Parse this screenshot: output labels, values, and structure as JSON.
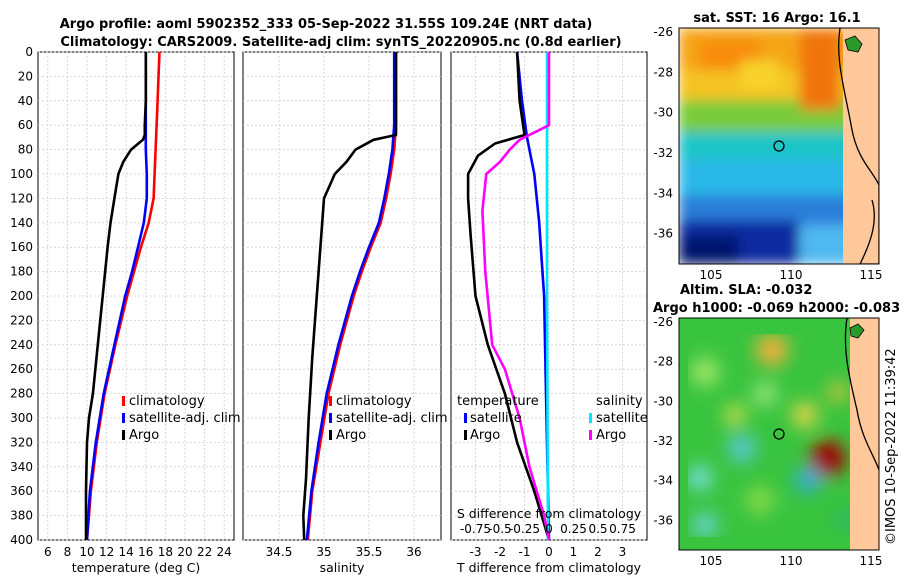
{
  "header": {
    "title_line1": "Argo profile: aoml 5902352_333 05-Sep-2022 31.55S 109.24E (NRT data)",
    "title_line2": "Climatology: CARS2009. Satellite-adj clim: synTS_20220905.nc (0.8d earlier)",
    "sst_title": "sat. SST: 16 Argo: 16.1",
    "sla_title": "Altim. SLA: -0.032",
    "sla_subtitle": "Argo h1000: -0.069 h2000: -0.083",
    "credit": "©IMOS 10-Sep-2022 11:39:42"
  },
  "colors": {
    "climatology": "#ff0000",
    "satellite": "#0000ff",
    "argo": "#000000",
    "sal_satellite": "#00e5ff",
    "sal_argo": "#ff00ff"
  },
  "chart_data": [
    {
      "type": "line",
      "id": "temperature",
      "xlabel": "temperature (deg C)",
      "ylabel": "",
      "xlim": [
        5,
        25
      ],
      "ylim": [
        400,
        0
      ],
      "xticks": [
        "6",
        "8",
        "10",
        "12",
        "14",
        "16",
        "18",
        "20",
        "22",
        "24"
      ],
      "yticks": [
        "0",
        "20",
        "40",
        "60",
        "80",
        "100",
        "120",
        "140",
        "160",
        "180",
        "200",
        "220",
        "240",
        "260",
        "280",
        "300",
        "320",
        "340",
        "360",
        "380",
        "400"
      ],
      "legend": [
        "climatology",
        "satellite-adj. clim",
        "Argo"
      ],
      "series": [
        {
          "name": "climatology",
          "depth": [
            0,
            20,
            40,
            60,
            80,
            100,
            120,
            140,
            160,
            180,
            200,
            240,
            280,
            320,
            360,
            400
          ],
          "values": [
            17.4,
            17.3,
            17.2,
            17.1,
            17.0,
            16.9,
            16.8,
            16.3,
            15.5,
            14.8,
            14.1,
            12.9,
            11.8,
            11.0,
            10.4,
            10.0
          ]
        },
        {
          "name": "satellite-adj. clim",
          "depth": [
            0,
            20,
            40,
            60,
            80,
            100,
            120,
            140,
            160,
            180,
            200,
            240,
            280,
            320,
            360,
            400
          ],
          "values": [
            16.0,
            16.0,
            16.0,
            16.0,
            16.0,
            16.1,
            16.1,
            15.8,
            15.2,
            14.6,
            13.9,
            12.8,
            11.7,
            10.9,
            10.3,
            10.0
          ]
        },
        {
          "name": "Argo",
          "depth": [
            0,
            20,
            40,
            60,
            68,
            72,
            80,
            90,
            100,
            110,
            120,
            140,
            160,
            200,
            240,
            280,
            300,
            320,
            360,
            400
          ],
          "values": [
            16.0,
            16.0,
            16.0,
            15.9,
            15.9,
            15.7,
            14.5,
            13.7,
            13.2,
            13.0,
            12.8,
            12.4,
            12.1,
            11.6,
            11.1,
            10.6,
            10.2,
            10.0,
            9.9,
            9.9
          ]
        }
      ]
    },
    {
      "type": "line",
      "id": "salinity",
      "xlabel": "salinity",
      "ylabel": "",
      "xlim": [
        34.1,
        36.3
      ],
      "ylim": [
        400,
        0
      ],
      "xticks": [
        "34.5",
        "35",
        "35.5",
        "36"
      ],
      "legend": [
        "climatology",
        "satellite-adj. clim",
        "Argo"
      ],
      "series": [
        {
          "name": "climatology",
          "depth": [
            0,
            40,
            60,
            80,
            100,
            120,
            140,
            160,
            180,
            200,
            240,
            280,
            320,
            360,
            400
          ],
          "values": [
            35.8,
            35.8,
            35.8,
            35.78,
            35.74,
            35.69,
            35.63,
            35.52,
            35.42,
            35.33,
            35.18,
            35.05,
            34.96,
            34.87,
            34.82
          ]
        },
        {
          "name": "satellite-adj. clim",
          "depth": [
            0,
            40,
            60,
            80,
            100,
            120,
            140,
            160,
            180,
            200,
            240,
            280,
            320,
            360,
            400
          ],
          "values": [
            35.78,
            35.78,
            35.78,
            35.76,
            35.72,
            35.67,
            35.61,
            35.5,
            35.4,
            35.31,
            35.16,
            35.03,
            34.94,
            34.86,
            34.81
          ]
        },
        {
          "name": "Argo",
          "depth": [
            0,
            50,
            68,
            72,
            80,
            90,
            100,
            120,
            150,
            200,
            250,
            300,
            350,
            380,
            400
          ],
          "values": [
            35.8,
            35.8,
            35.8,
            35.55,
            35.35,
            35.25,
            35.12,
            35.0,
            34.97,
            34.92,
            34.87,
            34.83,
            34.8,
            34.77,
            34.78
          ]
        }
      ]
    },
    {
      "type": "line",
      "id": "differences",
      "xlabel": "T difference from climatology",
      "x2label": "S difference from climatology",
      "xlim": [
        -4,
        4
      ],
      "ylim": [
        400,
        0
      ],
      "xticks": [
        "-3",
        "-2",
        "-1",
        "0",
        "1",
        "2",
        "3"
      ],
      "x2ticks": [
        "-0.75",
        "-0.5",
        "-0.25",
        "0",
        "0.25",
        "0.5",
        "0.75"
      ],
      "legend_temp_title": "temperature",
      "legend_sal_title": "salinity",
      "legend_temp": [
        "satellite",
        "Argo"
      ],
      "legend_sal": [
        "satellite",
        "Argo"
      ],
      "series": [
        {
          "name": "T satellite",
          "depth": [
            0,
            40,
            70,
            100,
            140,
            200,
            300,
            400
          ],
          "values": [
            -1.3,
            -1.1,
            -0.9,
            -0.6,
            -0.4,
            -0.2,
            -0.1,
            0
          ]
        },
        {
          "name": "T Argo",
          "depth": [
            0,
            40,
            68,
            75,
            85,
            100,
            120,
            150,
            200,
            240,
            280,
            320,
            360,
            400
          ],
          "values": [
            -1.3,
            -1.2,
            -1.0,
            -2.2,
            -2.9,
            -3.3,
            -3.3,
            -3.2,
            -3.0,
            -2.5,
            -1.8,
            -1.3,
            -0.6,
            0
          ]
        },
        {
          "name": "S satellite",
          "depth": [
            0,
            100,
            200,
            400
          ],
          "values": [
            -0.02,
            -0.02,
            -0.02,
            -0.01
          ]
        },
        {
          "name": "S Argo",
          "depth": [
            0,
            20,
            40,
            60,
            72,
            80,
            90,
            100,
            130,
            180,
            240,
            260,
            300,
            340,
            380,
            400
          ],
          "values": [
            0,
            0,
            0,
            0,
            -0.3,
            -0.4,
            -0.5,
            -0.64,
            -0.68,
            -0.65,
            -0.58,
            -0.45,
            -0.3,
            -0.2,
            -0.05,
            0
          ]
        }
      ]
    },
    {
      "type": "heatmap",
      "id": "sst-map",
      "title": "sat. SST: 16 Argo: 16.1",
      "xlim": [
        103,
        115.5
      ],
      "ylim": [
        -37.5,
        -25.8
      ],
      "xticks": [
        "105",
        "110",
        "115"
      ],
      "yticks": [
        "-26",
        "-28",
        "-30",
        "-32",
        "-34",
        "-36"
      ],
      "argo_position": {
        "lon": 109.24,
        "lat": -31.55
      }
    },
    {
      "type": "heatmap",
      "id": "sla-map",
      "title": "Altim. SLA: -0.032",
      "xlim": [
        103,
        115.5
      ],
      "ylim": [
        -37.5,
        -25.8
      ],
      "xticks": [
        "105",
        "110",
        "115"
      ],
      "yticks": [
        "-26",
        "-28",
        "-30",
        "-32",
        "-34",
        "-36"
      ],
      "argo_position": {
        "lon": 109.24,
        "lat": -31.55
      }
    }
  ]
}
